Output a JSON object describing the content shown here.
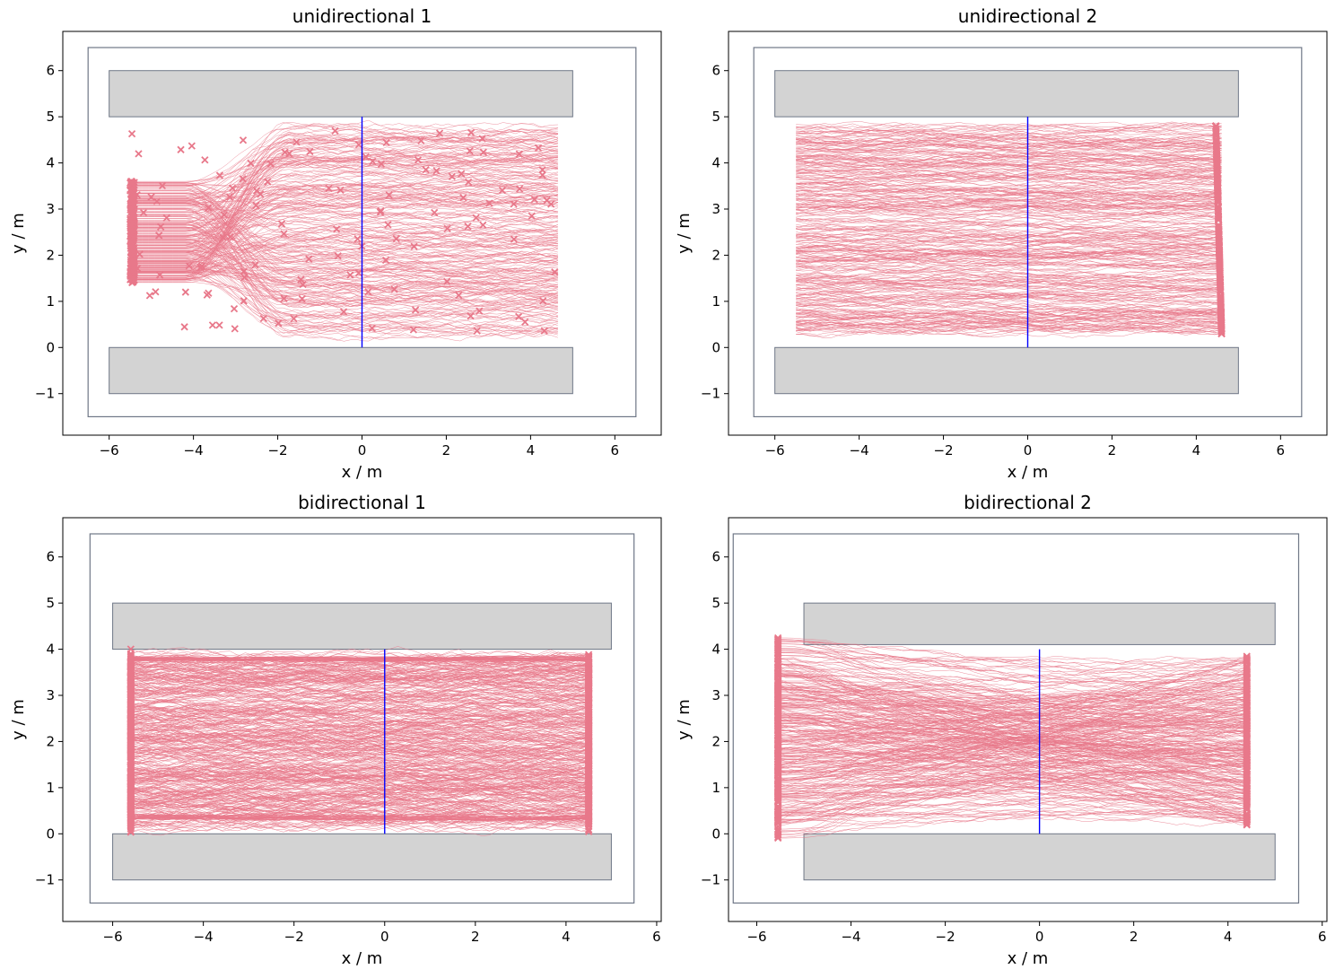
{
  "colors": {
    "trajectory": "#e8788a",
    "obstacle_fill": "#d3d3d3",
    "obstacle_edge": "#6f7787",
    "boundary": "#6f7787",
    "measurement_line": "#0000ff",
    "axes": "#000000"
  },
  "chart_data": [
    {
      "type": "line",
      "title": "unidirectional 1",
      "xlabel": "x / m",
      "ylabel": "y / m",
      "xlim": [
        -7.1,
        7.1
      ],
      "ylim": [
        -1.9,
        6.85
      ],
      "xticks": [
        -6,
        -4,
        -2,
        0,
        2,
        4,
        6
      ],
      "yticks": [
        -1,
        0,
        1,
        2,
        3,
        4,
        5,
        6
      ],
      "grid": false,
      "boundary": {
        "x": [
          -6.5,
          6.5
        ],
        "y": [
          -1.5,
          6.5
        ]
      },
      "obstacles": [
        {
          "x": [
            -6.0,
            5.0
          ],
          "y": [
            5.0,
            6.0
          ]
        },
        {
          "x": [
            -6.0,
            5.0
          ],
          "y": [
            -1.0,
            0.0
          ]
        }
      ],
      "measurement_line": {
        "x": 0,
        "y": [
          0,
          5
        ]
      },
      "trajectories": {
        "count": 260,
        "x_end": 4.65,
        "y_range": [
          0.25,
          4.8
        ],
        "bottleneck_y": [
          1.4,
          3.6
        ]
      },
      "end_markers_x_range": [
        -5.5,
        4.6
      ]
    },
    {
      "type": "line",
      "title": "unidirectional 2",
      "xlabel": "x / m",
      "ylabel": "y / m",
      "xlim": [
        -7.1,
        7.1
      ],
      "ylim": [
        -1.9,
        6.85
      ],
      "xticks": [
        -6,
        -4,
        -2,
        0,
        2,
        4,
        6
      ],
      "yticks": [
        -1,
        0,
        1,
        2,
        3,
        4,
        5,
        6
      ],
      "grid": false,
      "boundary": {
        "x": [
          -6.5,
          6.5
        ],
        "y": [
          -1.5,
          6.5
        ]
      },
      "obstacles": [
        {
          "x": [
            -6.0,
            5.0
          ],
          "y": [
            5.0,
            6.0
          ]
        },
        {
          "x": [
            -6.0,
            5.0
          ],
          "y": [
            -1.0,
            0.0
          ]
        }
      ],
      "measurement_line": {
        "x": 0,
        "y": [
          0,
          5
        ]
      },
      "trajectories": {
        "count": 320,
        "x_start": -5.5,
        "x_end": 4.6,
        "y_range": [
          0.3,
          4.8
        ]
      },
      "end_markers_x": 4.6
    },
    {
      "type": "line",
      "title": "bidirectional 1",
      "xlabel": "x / m",
      "ylabel": "y / m",
      "xlim": [
        -7.1,
        6.1
      ],
      "ylim": [
        -1.9,
        6.85
      ],
      "xticks": [
        -6,
        -4,
        -2,
        0,
        2,
        4,
        6
      ],
      "yticks": [
        -1,
        0,
        1,
        2,
        3,
        4,
        5,
        6
      ],
      "grid": false,
      "boundary": {
        "x": [
          -6.5,
          5.5
        ],
        "y": [
          -1.5,
          6.5
        ]
      },
      "obstacles": [
        {
          "x": [
            -6.0,
            5.0
          ],
          "y": [
            4.0,
            5.0
          ]
        },
        {
          "x": [
            -6.0,
            5.0
          ],
          "y": [
            -1.0,
            0.0
          ]
        }
      ],
      "measurement_line": {
        "x": 0,
        "y": [
          0,
          4
        ]
      },
      "trajectories": {
        "count": 420,
        "x_start": -5.6,
        "x_end": 4.5,
        "y_range": [
          0.2,
          3.85
        ]
      },
      "end_markers_x": [
        -5.55,
        4.5
      ]
    },
    {
      "type": "line",
      "title": "bidirectional 2",
      "xlabel": "x / m",
      "ylabel": "y / m",
      "xlim": [
        -6.6,
        6.1
      ],
      "ylim": [
        -1.9,
        6.85
      ],
      "xticks": [
        -6,
        -4,
        -2,
        0,
        2,
        4,
        6
      ],
      "yticks": [
        -1,
        0,
        1,
        2,
        3,
        4,
        5,
        6
      ],
      "grid": false,
      "boundary": {
        "x": [
          -6.5,
          5.5
        ],
        "y": [
          -1.5,
          6.5
        ]
      },
      "obstacles": [
        {
          "x": [
            -5.0,
            5.0
          ],
          "y": [
            4.1,
            5.0
          ]
        },
        {
          "x": [
            -5.0,
            5.0
          ],
          "y": [
            -1.0,
            0.0
          ]
        }
      ],
      "measurement_line": {
        "x": 0,
        "y": [
          0,
          4
        ]
      },
      "trajectories": {
        "count": 320,
        "x_start": -5.55,
        "x_end": 4.4,
        "y_range": [
          0.25,
          3.85
        ],
        "start_y_range": [
          -0.1,
          4.3
        ]
      },
      "end_markers_x": [
        -5.55,
        4.45
      ]
    }
  ]
}
